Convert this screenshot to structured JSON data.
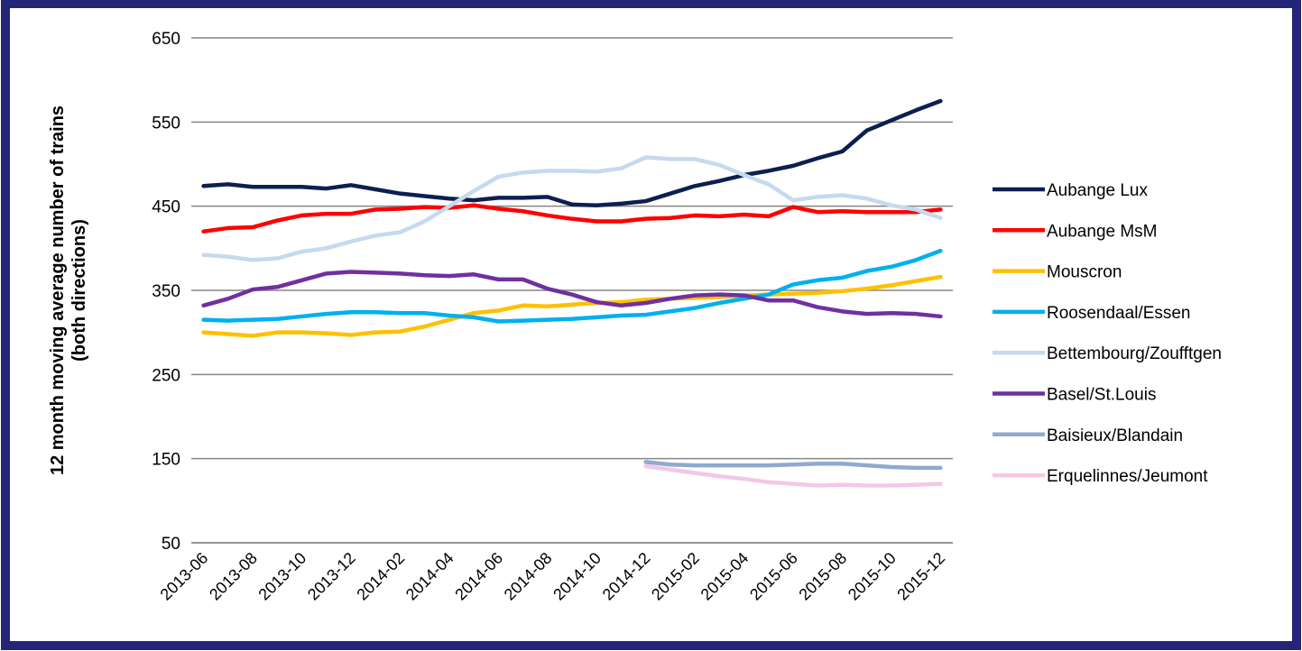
{
  "chart_data": {
    "type": "line",
    "y_label": [
      "12 month moving average number of trains",
      "(both directions)"
    ],
    "categories": [
      "2013-06",
      null,
      "2013-08",
      null,
      "2013-10",
      null,
      "2013-12",
      null,
      "2014-02",
      null,
      "2014-04",
      null,
      "2014-06",
      null,
      "2014-08",
      null,
      "2014-10",
      null,
      "2014-12",
      null,
      "2015-02",
      null,
      "2015-04",
      null,
      "2015-06",
      null,
      "2015-08",
      null,
      "2015-10",
      null,
      "2015-12"
    ],
    "ylim": [
      50,
      650
    ],
    "yticks": [
      50,
      150,
      250,
      350,
      450,
      550,
      650
    ],
    "grid": true,
    "legend": "right",
    "series": [
      {
        "name": "Aubange Lux",
        "color": "#0d1f4f",
        "values": [
          474,
          476,
          473,
          473,
          473,
          471,
          475,
          470,
          465,
          462,
          459,
          457,
          460,
          460,
          461,
          452,
          451,
          453,
          456,
          465,
          474,
          480,
          487,
          492,
          498,
          507,
          515,
          540,
          552,
          564,
          575
        ]
      },
      {
        "name": "Aubange MsM",
        "color": "#ff0000",
        "values": [
          420,
          424,
          425,
          433,
          439,
          441,
          441,
          446,
          447,
          449,
          448,
          451,
          447,
          444,
          439,
          435,
          432,
          432,
          435,
          436,
          439,
          438,
          440,
          438,
          449,
          443,
          444,
          443,
          443,
          443,
          446
        ]
      },
      {
        "name": "Mouscron",
        "color": "#ffc000",
        "values": [
          300,
          298,
          296,
          300,
          300,
          299,
          297,
          300,
          301,
          307,
          315,
          323,
          326,
          332,
          331,
          333,
          335,
          336,
          339,
          340,
          341,
          342,
          344,
          345,
          346,
          347,
          349,
          352,
          356,
          361,
          366
        ]
      },
      {
        "name": "Roosendaal/Essen",
        "color": "#00b0f0",
        "values": [
          315,
          314,
          315,
          316,
          319,
          322,
          324,
          324,
          323,
          323,
          320,
          318,
          313,
          314,
          315,
          316,
          318,
          320,
          321,
          325,
          329,
          335,
          340,
          345,
          357,
          362,
          365,
          373,
          378,
          386,
          397
        ]
      },
      {
        "name": "Bettembourg/Zoufftgen",
        "color": "#c6d9f1",
        "values": [
          392,
          390,
          386,
          388,
          396,
          400,
          408,
          415,
          419,
          432,
          450,
          468,
          485,
          490,
          492,
          492,
          491,
          495,
          508,
          506,
          506,
          499,
          487,
          476,
          457,
          461,
          463,
          459,
          451,
          446,
          436
        ]
      },
      {
        "name": "Basel/St.Louis",
        "color": "#7030a0",
        "values": [
          332,
          340,
          351,
          354,
          362,
          370,
          372,
          371,
          370,
          368,
          367,
          369,
          363,
          363,
          352,
          345,
          336,
          332,
          335,
          340,
          344,
          345,
          344,
          338,
          338,
          330,
          325,
          322,
          323,
          322,
          319
        ]
      },
      {
        "name": "Baisieux/Blandain",
        "color": "#8eaacf",
        "values": [
          null,
          null,
          null,
          null,
          null,
          null,
          null,
          null,
          null,
          null,
          null,
          null,
          null,
          null,
          null,
          null,
          null,
          null,
          146,
          143,
          142,
          142,
          142,
          142,
          143,
          144,
          144,
          142,
          140,
          139,
          139
        ]
      },
      {
        "name": "Erquelinnes/Jeumont",
        "color": "#f4c6e8",
        "values": [
          null,
          null,
          null,
          null,
          null,
          null,
          null,
          null,
          null,
          null,
          null,
          null,
          null,
          null,
          null,
          null,
          null,
          null,
          141,
          137,
          133,
          129,
          126,
          122,
          120,
          118,
          119,
          118,
          118,
          119,
          120
        ]
      }
    ]
  }
}
